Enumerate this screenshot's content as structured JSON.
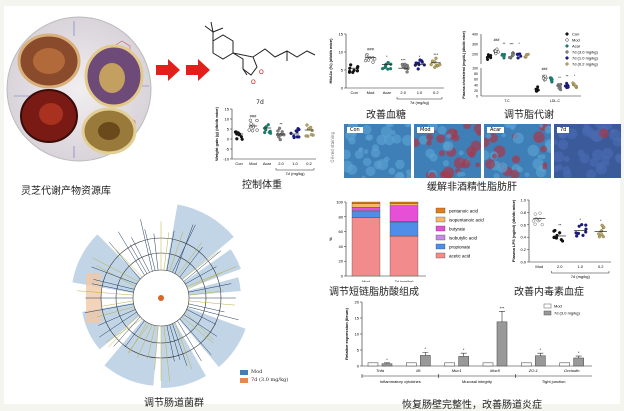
{
  "captions": {
    "resource_library": "灵芝代谢产物资源库",
    "compound_label": "7d",
    "weight": "控制体重",
    "glucose": "改善血糖",
    "lipid": "调节脂代谢",
    "liver": "缓解非酒精性脂肪肝",
    "microbiota": "调节肠道菌群",
    "scfa": "调节短链脂肪酸组成",
    "endotoxin": "改善内毒素血症",
    "barrier": "恢复肠壁完整性，改善肠道炎症"
  },
  "histology": {
    "side_label": "Oil-red staining",
    "panels": [
      {
        "label": "Con"
      },
      {
        "label": "Mod"
      },
      {
        "label": "Acar"
      },
      {
        "label": "7d"
      }
    ]
  },
  "cladogram_legend": [
    {
      "label": "Mod",
      "color": "#3f7fb8"
    },
    {
      "label": "7d (3.0 mg/kg)",
      "color": "#e38a4a"
    }
  ],
  "colors": {
    "arrow": "#e0201b",
    "scfa_acetic": "#f28b8b",
    "scfa_propionate": "#4f8ee8",
    "scfa_isobutyric": "#c58be6",
    "scfa_butyrate": "#e64fd6",
    "scfa_isopentanoic": "#f5b86a",
    "scfa_pentanoic": "#e0801a"
  },
  "chart_data": [
    {
      "id": "weight",
      "type": "scatter",
      "ylabel": "Weight gain (g) (db/db mice)",
      "categories": [
        "Con",
        "Mod",
        "Acar",
        "2.0",
        "1.0",
        "0.2"
      ],
      "group_label": "7d (mg/kg)",
      "ylim": [
        -10,
        15
      ],
      "yticks": [
        -10,
        -5,
        0,
        5,
        10,
        15
      ],
      "means": [
        2.5,
        6.5,
        5.5,
        2.5,
        2.5,
        4.5
      ],
      "annotations": [
        "",
        "###",
        "",
        "**",
        "",
        ""
      ]
    },
    {
      "id": "hba1c",
      "type": "scatter",
      "ylabel": "HbA1c (%) (db/db mice)",
      "categories": [
        "Con",
        "Mod",
        "Acar",
        "2.0",
        "1.0",
        "0.2"
      ],
      "group_label": "7d (mg/kg)",
      "ylim": [
        0,
        15
      ],
      "yticks": [
        0,
        5,
        10,
        15
      ],
      "means": [
        5.5,
        8.5,
        6.5,
        5.5,
        6.5,
        7.0
      ],
      "annotations": [
        "",
        "###",
        "*",
        "***",
        "*",
        "***"
      ]
    },
    {
      "id": "lipid",
      "type": "scatter",
      "ylabel": "Plasma cholesterol (mg/dL) (db/db mice)",
      "categories": [
        "T.C",
        "LDL-C"
      ],
      "series": [
        {
          "name": "Con",
          "values": [
            170,
            25
          ]
        },
        {
          "name": "Mod",
          "values": [
            230,
            65
          ]
        },
        {
          "name": "Acar",
          "values": [
            190,
            60
          ]
        },
        {
          "name": "7d (3.0 mg/kg)",
          "values": [
            185,
            32
          ]
        },
        {
          "name": "7d (1.0 mg/kg)",
          "values": [
            190,
            38
          ]
        },
        {
          "name": "7d (0.2 mg/kg)",
          "values": [
            195,
            40
          ]
        }
      ],
      "yticks": [
        0,
        20,
        40,
        60,
        80,
        100,
        200,
        300,
        400
      ],
      "annotations": [
        [
          "",
          "###",
          "**",
          "***",
          "*",
          ""
        ],
        [
          "",
          "###",
          "",
          "**",
          "**",
          "*"
        ]
      ],
      "legend": "top-right"
    },
    {
      "id": "scfa",
      "type": "bar",
      "stacked": true,
      "ylabel": "%",
      "categories": [
        "Mod",
        "7d (mg/kg)"
      ],
      "ylim": [
        0,
        100
      ],
      "yticks": [
        0,
        20,
        40,
        60,
        80,
        100
      ],
      "series": [
        {
          "name": "acetic acid",
          "values": [
            79,
            54
          ]
        },
        {
          "name": "propionate",
          "values": [
            8,
            19
          ]
        },
        {
          "name": "isobutylic acid",
          "values": [
            2,
            1
          ]
        },
        {
          "name": "butyrate",
          "values": [
            4,
            21
          ]
        },
        {
          "name": "isopentanoic acid",
          "values": [
            5,
            3
          ]
        },
        {
          "name": "pentanoic acid",
          "values": [
            2,
            2
          ]
        }
      ],
      "legend": "right"
    },
    {
      "id": "lps",
      "type": "scatter",
      "ylabel": "Plasma LPS (ng/ml) (db/db mice)",
      "categories": [
        "Mod",
        "2.0",
        "1.0",
        "0.2"
      ],
      "group_label": "7d (mg/kg)",
      "ylim": [
        0,
        1.0
      ],
      "yticks": [
        0.0,
        0.2,
        0.4,
        0.6,
        0.8,
        1.0
      ],
      "means": [
        0.7,
        0.42,
        0.51,
        0.49
      ],
      "annotations": [
        "",
        "**",
        "*",
        "*"
      ]
    },
    {
      "id": "genes",
      "type": "bar",
      "ylabel": "Relative expression (ileum)",
      "categories": [
        "Tnfa",
        "Il6",
        "Muc1",
        "Muc5",
        "ZO-1",
        "Occludin"
      ],
      "groups": [
        {
          "label": "Inflammatory cytokines",
          "span": [
            0,
            1
          ]
        },
        {
          "label": "Mucosal integrity",
          "span": [
            2,
            3
          ]
        },
        {
          "label": "Tight junction",
          "span": [
            4,
            5
          ]
        }
      ],
      "ylim": [
        0,
        20
      ],
      "yticks": [
        0,
        5,
        10,
        15,
        20
      ],
      "series": [
        {
          "name": "Mod",
          "values": [
            1,
            1,
            1,
            1,
            1,
            1
          ]
        },
        {
          "name": "7d (3.0 mg/kg)",
          "values": [
            0.7,
            3.3,
            3.0,
            13.8,
            3.2,
            2.5
          ],
          "errors": [
            0.3,
            1.0,
            1.0,
            3.3,
            0.8,
            0.6
          ]
        }
      ],
      "annotations": [
        "*",
        "*",
        "*",
        "***",
        "*",
        "*"
      ],
      "legend": "top-right"
    }
  ]
}
